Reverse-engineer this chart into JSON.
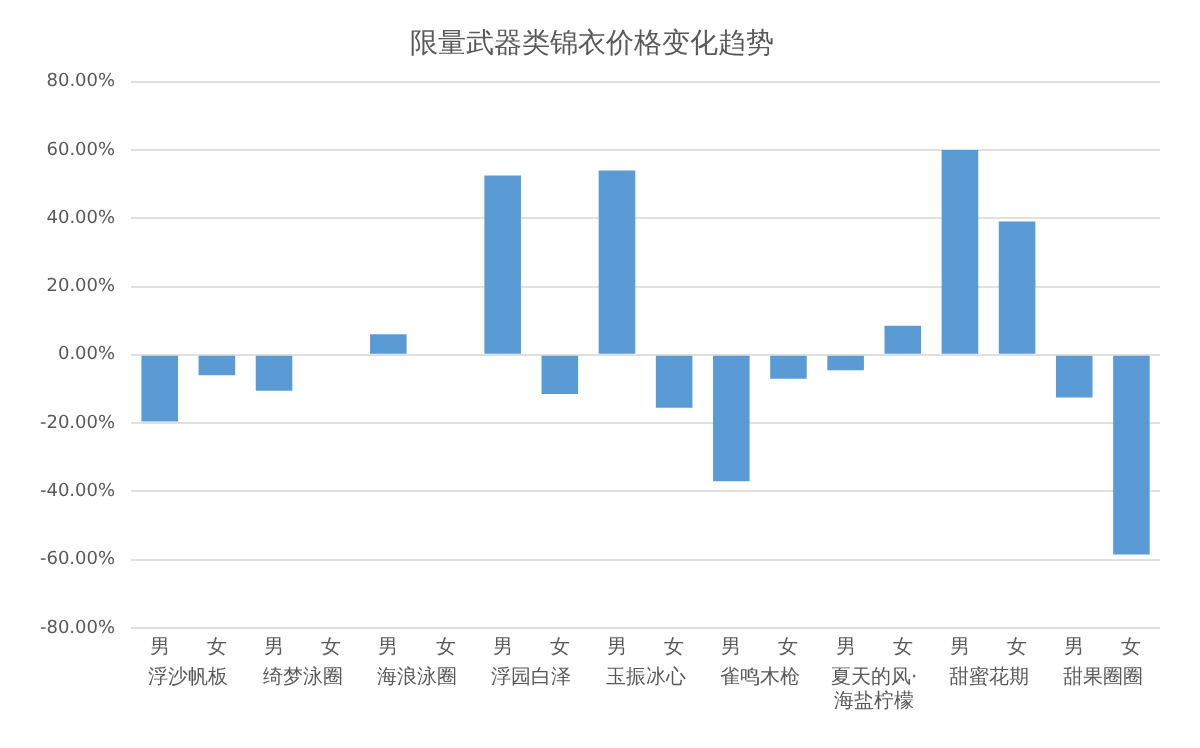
{
  "chart_data": {
    "type": "bar",
    "title": "限量武器类锦衣价格变化趋势",
    "categories": [
      "男",
      "女",
      "男",
      "女",
      "男",
      "女",
      "男",
      "女",
      "男",
      "女",
      "男",
      "女",
      "男",
      "女",
      "男",
      "女",
      "男",
      "女"
    ],
    "values": [
      -19.5,
      -6,
      -10.5,
      0,
      6,
      0,
      52.5,
      -11.5,
      54,
      -15.5,
      -37,
      -7,
      -4.5,
      8.5,
      60,
      39,
      -12.5,
      -58.5
    ],
    "color": "#5b9bd5",
    "ylim": [
      -80,
      80
    ],
    "yticks": [
      {
        "value": -80,
        "label": "-80.00%"
      },
      {
        "value": -60,
        "label": "-60.00%"
      },
      {
        "value": -40,
        "label": "-40.00%"
      },
      {
        "value": -20,
        "label": "-20.00%"
      },
      {
        "value": 0,
        "label": "0.00%"
      },
      {
        "value": 20,
        "label": "20.00%"
      },
      {
        "value": 40,
        "label": "40.00%"
      },
      {
        "value": 60,
        "label": "60.00%"
      },
      {
        "value": 80,
        "label": "80.00%"
      }
    ],
    "grid": "y",
    "annotations": [
      "浮沙帆板",
      "绮梦泳圈",
      "海浪泳圈",
      "浮园白泽",
      "玉振冰心",
      "雀鸣木枪",
      "夏天的风·海盐柠檬",
      "甜蜜花期",
      "甜果圈圈"
    ]
  }
}
